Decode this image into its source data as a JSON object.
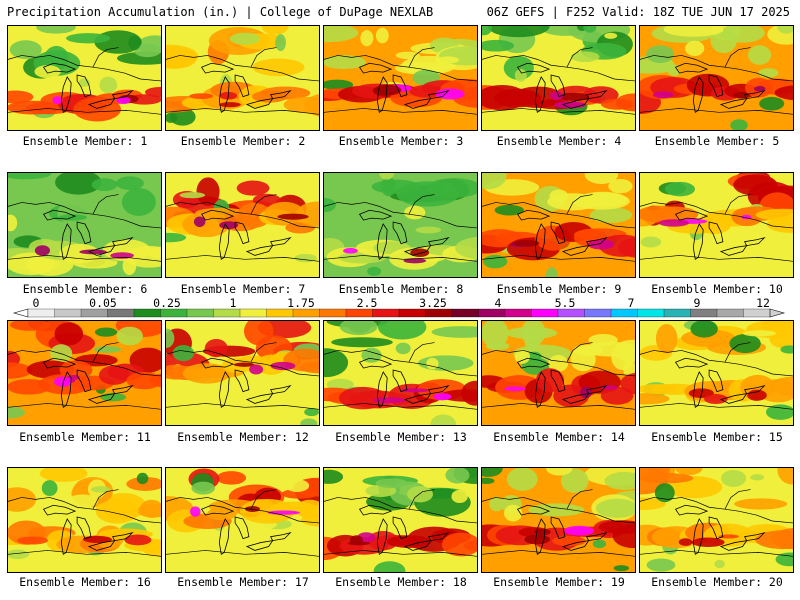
{
  "header": {
    "title_left": "Precipitation Accumulation (in.) | College of DuPage NEXLAB",
    "title_right": "06Z GEFS | F252 Valid: 18Z TUE JUN 17 2025"
  },
  "members": [
    {
      "label": "Ensemble Member: 1",
      "mode": "south"
    },
    {
      "label": "Ensemble Member: 2",
      "mode": "dry"
    },
    {
      "label": "Ensemble Member: 3",
      "mode": "heavy"
    },
    {
      "label": "Ensemble Member: 4",
      "mode": "south"
    },
    {
      "label": "Ensemble Member: 5",
      "mode": "heavy"
    },
    {
      "label": "Ensemble Member: 6",
      "mode": "green"
    },
    {
      "label": "Ensemble Member: 7",
      "mode": "north"
    },
    {
      "label": "Ensemble Member: 8",
      "mode": "green"
    },
    {
      "label": "Ensemble Member: 9",
      "mode": "heavy"
    },
    {
      "label": "Ensemble Member: 10",
      "mode": "north"
    },
    {
      "label": "Ensemble Member: 11",
      "mode": "wet"
    },
    {
      "label": "Ensemble Member: 12",
      "mode": "north"
    },
    {
      "label": "Ensemble Member: 13",
      "mode": "south"
    },
    {
      "label": "Ensemble Member: 14",
      "mode": "heavy"
    },
    {
      "label": "Ensemble Member: 15",
      "mode": "dry"
    },
    {
      "label": "Ensemble Member: 16",
      "mode": "dry"
    },
    {
      "label": "Ensemble Member: 17",
      "mode": "north"
    },
    {
      "label": "Ensemble Member: 18",
      "mode": "south"
    },
    {
      "label": "Ensemble Member: 19",
      "mode": "heavy"
    },
    {
      "label": "Ensemble Member: 20",
      "mode": "dry"
    }
  ],
  "colorbar": {
    "labels": [
      "0",
      "0.05",
      "0.25",
      "1",
      "1.75",
      "2.5",
      "3.25",
      "4",
      "5.5",
      "7",
      "9",
      "12"
    ],
    "colors": [
      "#eeeeee",
      "#c8c8c8",
      "#a0a0a0",
      "#787878",
      "#1e8c1e",
      "#3cb43c",
      "#78c850",
      "#b4dc46",
      "#f0f03c",
      "#ffc800",
      "#ffa000",
      "#ff7800",
      "#ff4600",
      "#e61414",
      "#c80000",
      "#a00000",
      "#780028",
      "#a00064",
      "#d2008c",
      "#ff00ff",
      "#b450ff",
      "#7878ff",
      "#00c8ff",
      "#00e6e6",
      "#28b4b4",
      "#808080",
      "#a8a8a8",
      "#d0d0d0"
    ]
  }
}
